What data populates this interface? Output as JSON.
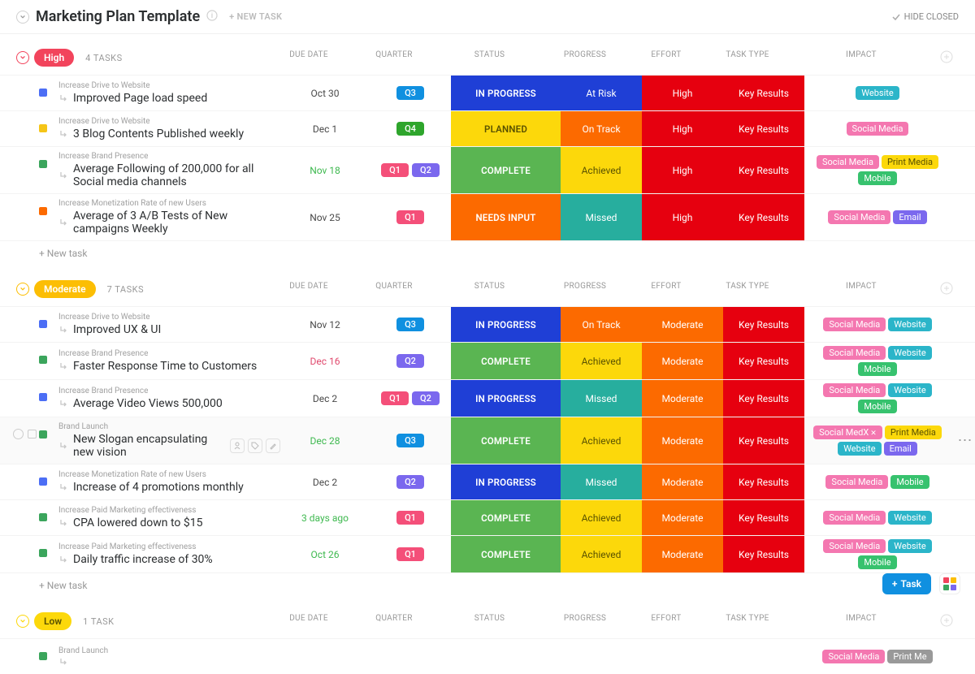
{
  "page": {
    "title": "Marketing Plan Template",
    "new_task_label": "+ NEW TASK",
    "hide_closed": "HIDE CLOSED",
    "fab_task": "Task",
    "quick_add_colors": [
      "#f2445c",
      "#fcbe04",
      "#3ba55c",
      "#7b68ee"
    ]
  },
  "columns": {
    "due": "DUE DATE",
    "quarter": "QUARTER",
    "status": "STATUS",
    "progress": "PROGRESS",
    "effort": "EFFORT",
    "type": "TASK TYPE",
    "impact": "IMPACT"
  },
  "colors": {
    "priority": {
      "High": "#f2445c",
      "Moderate": "#fcbe04",
      "Low": "#fcd80b"
    },
    "quarter": {
      "Q1": "#f44f79",
      "Q2": "#7b68ee",
      "Q3": "#1090e0",
      "Q4": "#2ea52c"
    },
    "status": {
      "IN PROGRESS": "#1f3fd6",
      "PLANNED": "#fcd80b",
      "COMPLETE": "#5ab552",
      "NEEDS INPUT": "#fc6a00"
    },
    "progress": {
      "At Risk": "#1f3fd6",
      "On Track": "#fc6a00",
      "Achieved": "#fcd80b",
      "Missed": "#27ae9e"
    },
    "effort": {
      "High": "#e6000f",
      "Moderate": "#fc6a00"
    },
    "type": {
      "Key Results": "#e6000f"
    },
    "impact": {
      "Website": "#2bb5c9",
      "Social Media": "#f477b0",
      "Social MedX": "#f477b0",
      "Print Media": "#fcd80b",
      "Mobile": "#37c26e",
      "Email": "#7b68ee"
    },
    "dot": {
      "blue": "#4c6ef5",
      "yellow": "#f5c518",
      "green": "#3ba55c",
      "orange": "#fc6a00"
    }
  },
  "new_task_row": "+ New task",
  "groups": [
    {
      "name": "High",
      "priority": "High",
      "count": "4 TASKS",
      "tasks": [
        {
          "dot": "blue",
          "cat": "Increase Drive to Website",
          "title": "Improved Page load speed",
          "due": "Oct 30",
          "due_c": "",
          "q": [
            "Q3"
          ],
          "status": "IN PROGRESS",
          "progress": "At Risk",
          "effort": "High",
          "type": "Key Results",
          "impact": [
            "Website"
          ]
        },
        {
          "dot": "yellow",
          "cat": "Increase Drive to Website",
          "title": "3 Blog Contents Published weekly",
          "due": "Dec 1",
          "due_c": "",
          "q": [
            "Q4"
          ],
          "status": "PLANNED",
          "progress": "On Track",
          "effort": "High",
          "type": "Key Results",
          "impact": [
            "Social Media"
          ]
        },
        {
          "dot": "green",
          "cat": "Increase Brand Presence",
          "title": "Average Following of 200,000 for all Social media channels",
          "due": "Nov 18",
          "due_c": "green",
          "q": [
            "Q1",
            "Q2"
          ],
          "status": "COMPLETE",
          "progress": "Achieved",
          "effort": "High",
          "type": "Key Results",
          "impact": [
            "Social Media",
            "Print Media",
            "Mobile"
          ]
        },
        {
          "dot": "orange",
          "cat": "Increase Monetization Rate of new Users",
          "title": "Average of 3 A/B Tests of New campaigns Weekly",
          "due": "Nov 25",
          "due_c": "",
          "q": [
            "Q1"
          ],
          "status": "NEEDS INPUT",
          "progress": "Missed",
          "effort": "High",
          "type": "Key Results",
          "impact": [
            "Social Media",
            "Email"
          ]
        }
      ]
    },
    {
      "name": "Moderate",
      "priority": "Moderate",
      "count": "7 TASKS",
      "tasks": [
        {
          "dot": "blue",
          "cat": "Increase Drive to Website",
          "title": "Improved UX & UI",
          "due": "Nov 12",
          "due_c": "",
          "q": [
            "Q3"
          ],
          "status": "IN PROGRESS",
          "progress": "On Track",
          "effort": "Moderate",
          "type": "Key Results",
          "impact": [
            "Social Media",
            "Website"
          ]
        },
        {
          "dot": "green",
          "cat": "Increase Brand Presence",
          "title": "Faster Response Time to Customers",
          "due": "Dec 16",
          "due_c": "red",
          "q": [
            "Q2"
          ],
          "status": "COMPLETE",
          "progress": "Achieved",
          "effort": "Moderate",
          "type": "Key Results",
          "impact": [
            "Social Media",
            "Website",
            "Mobile"
          ]
        },
        {
          "dot": "blue",
          "cat": "Increase Brand Presence",
          "title": "Average Video Views 500,000",
          "due": "Dec 2",
          "due_c": "",
          "q": [
            "Q1",
            "Q2"
          ],
          "status": "IN PROGRESS",
          "progress": "Missed",
          "effort": "Moderate",
          "type": "Key Results",
          "impact": [
            "Social Media",
            "Website",
            "Mobile"
          ]
        },
        {
          "dot": "green",
          "cat": "Brand Launch",
          "title": "New Slogan encapsulating new vision",
          "due": "Dec 28",
          "due_c": "green",
          "q": [
            "Q3"
          ],
          "status": "COMPLETE",
          "progress": "Achieved",
          "effort": "Moderate",
          "type": "Key Results",
          "impact": [
            "Social MedX",
            "Print Media",
            "Website",
            "Email"
          ],
          "hovered": true,
          "actions": true
        },
        {
          "dot": "blue",
          "cat": "Increase Monetization Rate of new Users",
          "title": "Increase of 4 promotions monthly",
          "due": "Dec 2",
          "due_c": "",
          "q": [
            "Q2"
          ],
          "status": "IN PROGRESS",
          "progress": "Missed",
          "effort": "Moderate",
          "type": "Key Results",
          "impact": [
            "Social Media",
            "Mobile"
          ]
        },
        {
          "dot": "green",
          "cat": "Increase Paid Marketing effectiveness",
          "title": "CPA lowered down to $15",
          "due": "3 days ago",
          "due_c": "green",
          "q": [
            "Q1"
          ],
          "status": "COMPLETE",
          "progress": "Achieved",
          "effort": "Moderate",
          "type": "Key Results",
          "impact": [
            "Social Media",
            "Website"
          ]
        },
        {
          "dot": "green",
          "cat": "Increase Paid Marketing effectiveness",
          "title": "Daily traffic increase of 30%",
          "due": "Oct 26",
          "due_c": "green",
          "q": [
            "Q1"
          ],
          "status": "COMPLETE",
          "progress": "Achieved",
          "effort": "Moderate",
          "type": "Key Results",
          "impact": [
            "Social Media",
            "Website",
            "Mobile"
          ]
        }
      ]
    },
    {
      "name": "Low",
      "priority": "Low",
      "count": "1 TASK",
      "tasks": [
        {
          "dot": "green",
          "cat": "Brand Launch",
          "title": "",
          "due": "",
          "due_c": "",
          "q": [],
          "status": "",
          "progress": "",
          "effort": "",
          "type": "",
          "impact": [
            "Social Media",
            "Print Me"
          ],
          "truncated": true
        }
      ]
    }
  ]
}
